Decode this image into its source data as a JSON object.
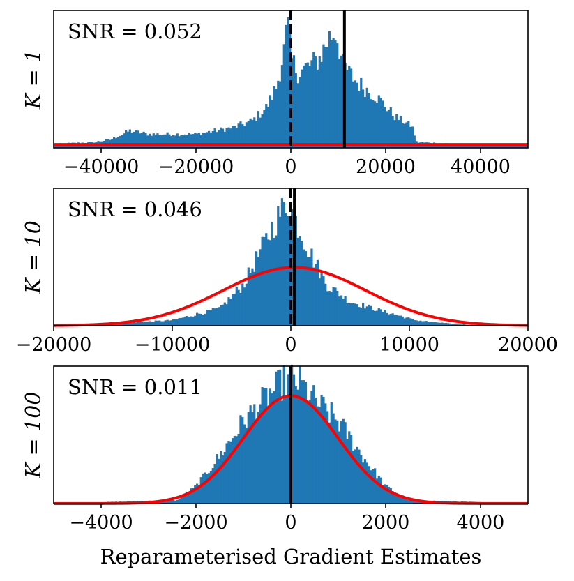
{
  "chart_data": [
    {
      "type": "bar",
      "title": "",
      "ylabel": "K = 1",
      "snr_text": "SNR = 0.052",
      "xlim": [
        -50000,
        50000
      ],
      "xticks": [
        -40000,
        -20000,
        0,
        20000,
        40000
      ],
      "tick_labels": [
        "−40000",
        "−20000",
        "0",
        "20000",
        "40000"
      ],
      "peak_height": 185,
      "zero_line": 0,
      "mean_line": 11300,
      "histogram_profile": [
        {
          "x": -49000,
          "h": 6
        },
        {
          "x": -42000,
          "h": 8
        },
        {
          "x": -38000,
          "h": 12
        },
        {
          "x": -34000,
          "h": 25
        },
        {
          "x": -30000,
          "h": 20
        },
        {
          "x": -20000,
          "h": 20
        },
        {
          "x": -12000,
          "h": 30
        },
        {
          "x": -8000,
          "h": 40
        },
        {
          "x": -5000,
          "h": 60
        },
        {
          "x": -3000,
          "h": 90
        },
        {
          "x": -1500,
          "h": 140
        },
        {
          "x": -700,
          "h": 180
        },
        {
          "x": 0,
          "h": 130
        },
        {
          "x": 1500,
          "h": 110
        },
        {
          "x": 4000,
          "h": 120
        },
        {
          "x": 6000,
          "h": 130
        },
        {
          "x": 8000,
          "h": 160
        },
        {
          "x": 9500,
          "h": 170
        },
        {
          "x": 11000,
          "h": 120
        },
        {
          "x": 14000,
          "h": 95
        },
        {
          "x": 18000,
          "h": 75
        },
        {
          "x": 22000,
          "h": 45
        },
        {
          "x": 25500,
          "h": 32
        },
        {
          "x": 26500,
          "h": 8
        },
        {
          "x": 35000,
          "h": 6
        },
        {
          "x": 49000,
          "h": 5
        }
      ],
      "gaussian": {
        "mean": 0,
        "sd": 1000000,
        "peak": 5
      }
    },
    {
      "type": "bar",
      "title": "",
      "ylabel": "K = 10",
      "snr_text": "SNR = 0.046",
      "xlim": [
        -20000,
        20000
      ],
      "xticks": [
        -20000,
        -10000,
        0,
        10000,
        20000
      ],
      "tick_labels": [
        "−20000",
        "−10000",
        "0",
        "10000",
        "20000"
      ],
      "peak_height": 185,
      "zero_line": 0,
      "mean_line": 300,
      "histogram_profile": [
        {
          "x": -20000,
          "h": 0
        },
        {
          "x": -16000,
          "h": 2
        },
        {
          "x": -10000,
          "h": 8
        },
        {
          "x": -6000,
          "h": 25
        },
        {
          "x": -4000,
          "h": 60
        },
        {
          "x": -2500,
          "h": 110
        },
        {
          "x": -1200,
          "h": 155
        },
        {
          "x": -300,
          "h": 180
        },
        {
          "x": 500,
          "h": 150
        },
        {
          "x": 1500,
          "h": 110
        },
        {
          "x": 3000,
          "h": 60
        },
        {
          "x": 5000,
          "h": 35
        },
        {
          "x": 8000,
          "h": 20
        },
        {
          "x": 10500,
          "h": 8
        },
        {
          "x": 14000,
          "h": 2
        },
        {
          "x": 20000,
          "h": 0
        }
      ],
      "gaussian": {
        "mean": 300,
        "sd": 6000,
        "peak": 85
      }
    },
    {
      "type": "bar",
      "title": "",
      "ylabel": "K = 100",
      "xlabel": "Reparameterised Gradient Estimates",
      "snr_text": "SNR = 0.011",
      "xlim": [
        -5000,
        5000
      ],
      "xticks": [
        -4000,
        -2000,
        0,
        2000,
        4000
      ],
      "tick_labels": [
        "−4000",
        "−2000",
        "0",
        "2000",
        "4000"
      ],
      "peak_height": 185,
      "zero_line": 0,
      "mean_line": 0,
      "histogram_profile": [
        {
          "x": -5000,
          "h": 0
        },
        {
          "x": -2400,
          "h": 5
        },
        {
          "x": -2000,
          "h": 25
        },
        {
          "x": -1500,
          "h": 70
        },
        {
          "x": -1000,
          "h": 120
        },
        {
          "x": -500,
          "h": 155
        },
        {
          "x": -200,
          "h": 175
        },
        {
          "x": 0,
          "h": 182
        },
        {
          "x": 200,
          "h": 175
        },
        {
          "x": 500,
          "h": 150
        },
        {
          "x": 1000,
          "h": 120
        },
        {
          "x": 1500,
          "h": 70
        },
        {
          "x": 2000,
          "h": 25
        },
        {
          "x": 2500,
          "h": 5
        },
        {
          "x": 5000,
          "h": 0
        }
      ],
      "gaussian": {
        "mean": 0,
        "sd": 1000,
        "peak": 157
      }
    }
  ],
  "colors": {
    "bars": "#1f77b4",
    "gaussian": "#ff0000",
    "lines": "#000000",
    "axes": "#000000"
  }
}
